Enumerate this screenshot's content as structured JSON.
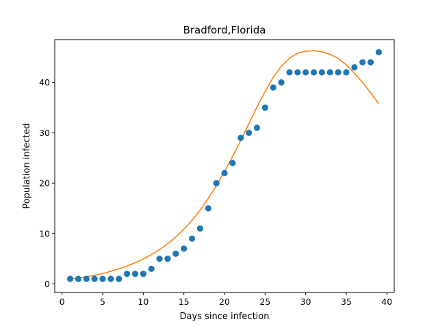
{
  "chart_data": {
    "type": "scatter",
    "title": "Bradford,Florida",
    "xlabel": "Days since infection",
    "ylabel": "Population infected",
    "xlim": [
      -0.9,
      40.9
    ],
    "ylim": [
      -1.7,
      48.5
    ],
    "xticks": [
      0,
      5,
      10,
      15,
      20,
      25,
      30,
      35,
      40
    ],
    "yticks": [
      0,
      10,
      20,
      30,
      40
    ],
    "grid": false,
    "legend": "none",
    "colors": {
      "points": "#1f77b4",
      "fit": "#ff7f0e"
    },
    "series": [
      {
        "type": "scatter",
        "x": [
          1,
          2,
          3,
          4,
          5,
          6,
          7,
          8,
          9,
          10,
          11,
          12,
          13,
          14,
          15,
          16,
          17,
          18,
          19,
          20,
          21,
          22,
          23,
          24,
          25,
          26,
          27,
          28,
          29,
          30,
          31,
          32,
          33,
          34,
          35,
          36,
          37,
          38,
          39
        ],
        "values": [
          1,
          1,
          1,
          1,
          1,
          1,
          1,
          2,
          2,
          2,
          3,
          5,
          5,
          6,
          7,
          9,
          11,
          15,
          20,
          22,
          24,
          29,
          30,
          31,
          35,
          39,
          40,
          42,
          42,
          42,
          42,
          42,
          42,
          42,
          42,
          43,
          44,
          44,
          46
        ]
      },
      {
        "type": "line",
        "x": [
          1,
          2,
          3,
          4,
          5,
          6,
          7,
          8,
          9,
          10,
          11,
          12,
          13,
          14,
          15,
          16,
          17,
          18,
          19,
          20,
          21,
          22,
          23,
          24,
          25,
          26,
          27,
          28,
          29,
          30,
          31,
          32,
          33,
          34,
          35,
          36,
          37,
          38,
          39
        ],
        "values": [
          1.0,
          1.15,
          1.4,
          1.7,
          2.05,
          2.5,
          3.0,
          3.55,
          4.2,
          4.95,
          5.8,
          6.8,
          7.95,
          9.3,
          10.85,
          12.6,
          14.65,
          16.95,
          19.5,
          22.3,
          25.3,
          28.5,
          31.8,
          35.1,
          38.2,
          41.0,
          43.2,
          44.8,
          45.8,
          46.2,
          46.3,
          46.1,
          45.6,
          44.8,
          43.5,
          41.8,
          40.0,
          37.9,
          35.8
        ]
      }
    ]
  }
}
